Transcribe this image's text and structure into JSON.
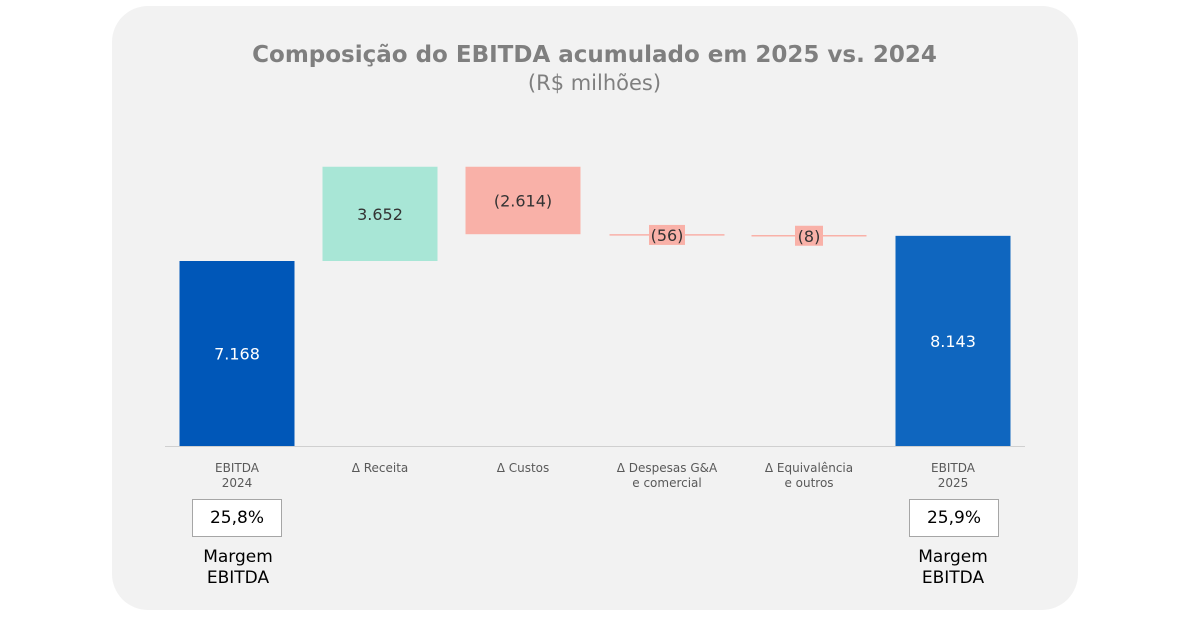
{
  "chart_data": {
    "type": "waterfall",
    "title": "Composição do EBITDA acumulado em 2025 vs. 2024",
    "subtitle": "(R$ milhões)",
    "steps": [
      {
        "category": [
          "EBITDA",
          "2024"
        ],
        "kind": "total",
        "value": 7168,
        "label": "7.168"
      },
      {
        "category": [
          "Δ Receita"
        ],
        "kind": "delta",
        "value": 3652,
        "label": "3.652"
      },
      {
        "category": [
          "Δ Custos"
        ],
        "kind": "delta",
        "value": -2614,
        "label": "(2.614)"
      },
      {
        "category": [
          "Δ Despesas G&A",
          "e comercial"
        ],
        "kind": "delta",
        "value": -56,
        "label": "(56)"
      },
      {
        "category": [
          "Δ Equivalência",
          "e outros"
        ],
        "kind": "delta",
        "value": -8,
        "label": "(8)"
      },
      {
        "category": [
          "EBITDA",
          "2025"
        ],
        "kind": "total",
        "value": 8143,
        "label": "8.143"
      }
    ],
    "colors": {
      "total_2024": "#0057b8",
      "total_2025": "#0f66bf",
      "increase": "#a8e6d6",
      "decrease": "#f9b1a8",
      "label_light": "#ffffff",
      "label_dark": "#333333",
      "axis": "#d0d0d0",
      "category_text": "#595959"
    }
  },
  "margins": {
    "left": {
      "value": "25,8%",
      "label": "Margem EBITDA"
    },
    "right": {
      "value": "25,9%",
      "label": "Margem EBITDA"
    }
  }
}
